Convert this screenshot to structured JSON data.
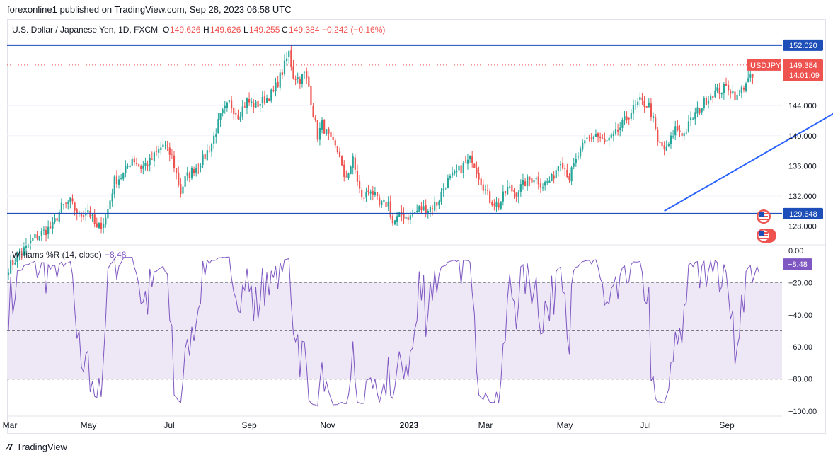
{
  "header": {
    "text": "forexonline1 published on TradingView.com, Sep 28, 2023 06:58 UTC"
  },
  "legend": {
    "symbol": "U.S. Dollar / Japanese Yen, 1D, FXCM",
    "o_label": "O",
    "o": "149.626",
    "h_label": "H",
    "h": "149.626",
    "l_label": "L",
    "l": "149.255",
    "c_label": "C",
    "c": "149.384",
    "change": "−0.242 (−0.16%)"
  },
  "indicator": {
    "name": "Williams %R (14, close)",
    "value": "−8.48"
  },
  "price_tag": {
    "ticker": "USDJPY",
    "price": "149.384",
    "countdown": "14:01:09"
  },
  "hlines": [
    {
      "label": "152.020",
      "value": 152.02
    },
    {
      "label": "129.648",
      "value": 129.648
    }
  ],
  "footer": {
    "brand": "TradingView"
  },
  "colors": {
    "up": "#26a69a",
    "down": "#ef5350",
    "line": "#2962ff",
    "hline": "#1e4fb9",
    "wr": "#7e57c2",
    "wr_fill": "#ede7f6"
  },
  "chart_data": [
    {
      "type": "candlestick",
      "title": "U.S. Dollar / Japanese Yen, 1D, FXCM",
      "x_ticks": [
        "Mar",
        "May",
        "Jul",
        "Sep",
        "Nov",
        "2023",
        "Mar",
        "May",
        "Jul",
        "Sep"
      ],
      "y_ticks": [
        "144.000",
        "140.000",
        "136.000",
        "132.000",
        "128.000"
      ],
      "ylim": [
        125.6,
        155.2
      ],
      "close_anchors": [
        [
          0,
          122.5
        ],
        [
          12,
          126.5
        ],
        [
          20,
          128.0
        ],
        [
          24,
          130.5
        ],
        [
          28,
          131.2
        ],
        [
          32,
          129.3
        ],
        [
          36,
          130.2
        ],
        [
          40,
          127.5
        ],
        [
          44,
          129.0
        ],
        [
          48,
          134.0
        ],
        [
          52,
          134.8
        ],
        [
          56,
          137.1
        ],
        [
          60,
          135.8
        ],
        [
          64,
          136.5
        ],
        [
          70,
          138.8
        ],
        [
          74,
          137.2
        ],
        [
          78,
          132.5
        ],
        [
          80,
          134.3
        ],
        [
          84,
          135.6
        ],
        [
          88,
          136.8
        ],
        [
          92,
          139.0
        ],
        [
          96,
          142.5
        ],
        [
          100,
          144.3
        ],
        [
          104,
          142.8
        ],
        [
          108,
          144.6
        ],
        [
          112,
          144.0
        ],
        [
          116,
          144.8
        ],
        [
          120,
          145.8
        ],
        [
          124,
          148.5
        ],
        [
          127,
          151.0
        ],
        [
          129,
          148.0
        ],
        [
          132,
          147.5
        ],
        [
          134,
          148.2
        ],
        [
          136,
          146.5
        ],
        [
          138,
          143.0
        ],
        [
          140,
          140.0
        ],
        [
          142,
          141.5
        ],
        [
          146,
          139.2
        ],
        [
          150,
          137.5
        ],
        [
          152,
          134.0
        ],
        [
          156,
          136.7
        ],
        [
          160,
          131.5
        ],
        [
          164,
          133.0
        ],
        [
          168,
          130.7
        ],
        [
          172,
          131.0
        ],
        [
          174,
          128.4
        ],
        [
          178,
          129.5
        ],
        [
          182,
          129.2
        ],
        [
          186,
          130.3
        ],
        [
          190,
          130.3
        ],
        [
          194,
          131.0
        ],
        [
          198,
          133.7
        ],
        [
          202,
          134.8
        ],
        [
          206,
          136.0
        ],
        [
          210,
          137.0
        ],
        [
          214,
          134.0
        ],
        [
          218,
          131.5
        ],
        [
          222,
          130.8
        ],
        [
          226,
          133.0
        ],
        [
          230,
          132.5
        ],
        [
          234,
          133.8
        ],
        [
          238,
          134.5
        ],
        [
          242,
          133.5
        ],
        [
          246,
          134.2
        ],
        [
          250,
          136.9
        ],
        [
          254,
          134.5
        ],
        [
          258,
          137.3
        ],
        [
          262,
          139.5
        ],
        [
          266,
          140.2
        ],
        [
          270,
          139.0
        ],
        [
          274,
          139.8
        ],
        [
          278,
          141.5
        ],
        [
          282,
          143.2
        ],
        [
          286,
          144.5
        ],
        [
          290,
          144.0
        ],
        [
          292,
          142.0
        ],
        [
          294,
          139.0
        ],
        [
          298,
          138.0
        ],
        [
          302,
          141.0
        ],
        [
          306,
          140.2
        ],
        [
          310,
          142.5
        ],
        [
          314,
          144.0
        ],
        [
          318,
          145.5
        ],
        [
          322,
          146.0
        ],
        [
          326,
          146.5
        ],
        [
          330,
          145.0
        ],
        [
          334,
          147.2
        ],
        [
          338,
          147.8
        ],
        [
          342,
          147.5
        ],
        [
          346,
          148.5
        ],
        [
          350,
          149.4
        ]
      ],
      "trendline": [
        [
          297,
          130.0
        ],
        [
          374,
          143.0
        ]
      ],
      "series": [
        {
          "name": "USDJPY",
          "last": 149.384
        }
      ]
    },
    {
      "type": "line",
      "title": "Williams %R (14, close)",
      "y_ticks": [
        "0.00",
        "−20.00",
        "−40.00",
        "−60.00",
        "−80.00",
        "−100.00"
      ],
      "ylim": [
        -103,
        3
      ],
      "bands": [
        -20,
        -80
      ],
      "last": -8.48
    }
  ]
}
